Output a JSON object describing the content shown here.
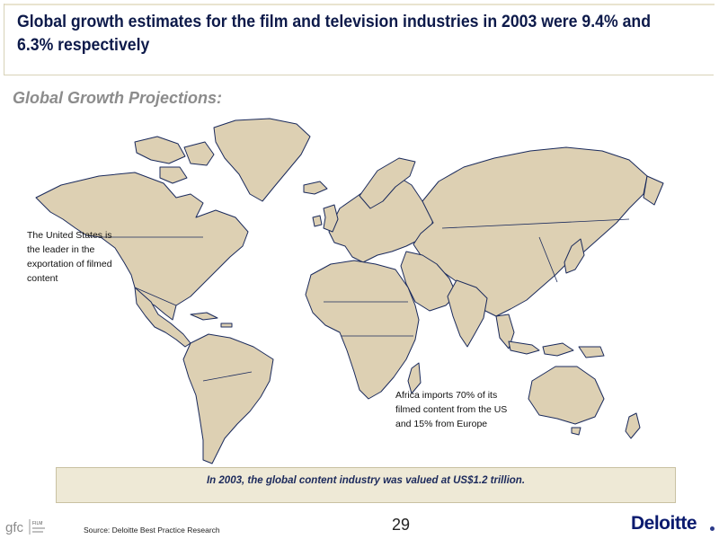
{
  "slide": {
    "title": "Global growth estimates for the film and television industries in 2003 were 9.4% and 6.3% respectively",
    "subtitle": "Global Growth Projections:"
  },
  "notes": {
    "us": "The United States is the leader in the exportation of filmed content",
    "africa": "Africa imports 70% of its filmed content from the US and 15% from Europe"
  },
  "banner": "In 2003, the global content industry was valued at US$1.2 trillion.",
  "footer": {
    "source": "Source: Deloitte Best Practice Research",
    "page_number": "29",
    "brand": "Deloitte",
    "gfc_logo": "gfc",
    "gfc_logo_sub": "FILM"
  },
  "colors": {
    "land": "#ddd0b3",
    "border": "#1a2a5c",
    "title": "#0d1a4a",
    "banner_bg": "#eee9d6"
  },
  "map_icon": "world-map"
}
